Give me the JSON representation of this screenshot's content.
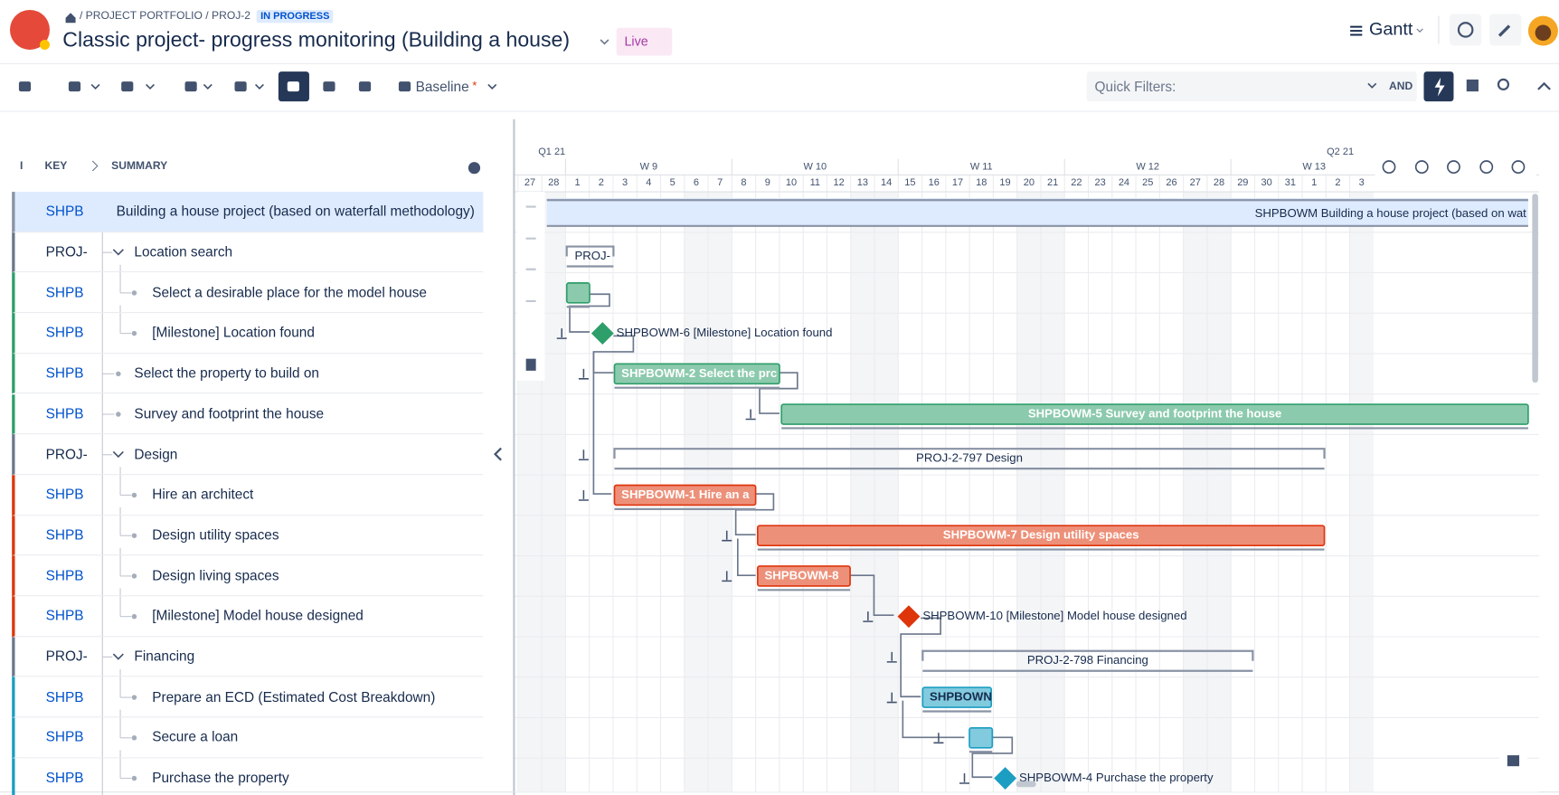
{
  "header": {
    "breadcrumb": "/ PROJECT PORTFOLIO / PROJ-2",
    "status": "IN PROGRESS",
    "title": "Classic project- progress monitoring (Building a house)",
    "live": "Live",
    "view": "Gantt"
  },
  "toolbar": {
    "baseline": "Baseline",
    "baseline_marker": "*",
    "quick_filters": "Quick Filters:",
    "and": "AND"
  },
  "columns": {
    "i": "I",
    "key": "KEY",
    "summary": "SUMMARY"
  },
  "rows": [
    {
      "key": "SHPB",
      "summary": "Building a house project (based on waterfall methodology)",
      "level": 0,
      "expandable": true,
      "color": "#8993a4"
    },
    {
      "key": "PROJ-",
      "summary": "Location search",
      "level": 1,
      "expandable": true,
      "color": "#6b778c"
    },
    {
      "key": "SHPB",
      "summary": "Select a desirable place for the model house",
      "level": 2,
      "expandable": false,
      "color": "#2e9e6a"
    },
    {
      "key": "SHPB",
      "summary": "[Milestone] Location found",
      "level": 2,
      "expandable": false,
      "color": "#2e9e6a"
    },
    {
      "key": "SHPB",
      "summary": "Select the property to build on",
      "level": 1,
      "expandable": false,
      "color": "#2e9e6a"
    },
    {
      "key": "SHPB",
      "summary": "Survey and footprint the house",
      "level": 1,
      "expandable": false,
      "color": "#2e9e6a"
    },
    {
      "key": "PROJ-",
      "summary": "Design",
      "level": 1,
      "expandable": true,
      "color": "#6b778c"
    },
    {
      "key": "SHPB",
      "summary": "Hire an architect",
      "level": 2,
      "expandable": false,
      "color": "#de350b"
    },
    {
      "key": "SHPB",
      "summary": "Design utility spaces",
      "level": 2,
      "expandable": false,
      "color": "#de350b"
    },
    {
      "key": "SHPB",
      "summary": "Design living spaces",
      "level": 2,
      "expandable": false,
      "color": "#de350b"
    },
    {
      "key": "SHPB",
      "summary": "[Milestone] Model house designed",
      "level": 2,
      "expandable": false,
      "color": "#de350b"
    },
    {
      "key": "PROJ-",
      "summary": "Financing",
      "level": 1,
      "expandable": true,
      "color": "#6b778c"
    },
    {
      "key": "SHPB",
      "summary": "Prepare an ECD (Estimated Cost Breakdown)",
      "level": 2,
      "expandable": false,
      "color": "#1b9ec2"
    },
    {
      "key": "SHPB",
      "summary": "Secure a loan",
      "level": 2,
      "expandable": false,
      "color": "#1b9ec2"
    },
    {
      "key": "SHPB",
      "summary": "Purchase the property",
      "level": 2,
      "expandable": false,
      "color": "#1b9ec2"
    }
  ],
  "timeline": {
    "quarters": [
      "Q1 21",
      "Q2 21"
    ],
    "weeks": [
      "W 9",
      "W 10",
      "W 11",
      "W 12",
      "W 13"
    ],
    "days": [
      27,
      28,
      1,
      2,
      3,
      4,
      5,
      6,
      7,
      8,
      9,
      10,
      11,
      12,
      13,
      14,
      15,
      16,
      17,
      18,
      19,
      20,
      21,
      22,
      23,
      24,
      25,
      26,
      27,
      28,
      29,
      30,
      31,
      1,
      2,
      3
    ]
  },
  "bars": [
    "SHPBOWM  Building a house project (based on wat",
    "PROJ-",
    null,
    "SHPBOWM-6  [Milestone] Location found",
    "SHPBOWM-2  Select the prc",
    "SHPBOWM-5  Survey and footprint the house",
    "PROJ-2-797  Design",
    "SHPBOWM-1  Hire an a",
    "SHPBOWM-7  Design utility spaces",
    "SHPBOWM-8",
    "SHPBOWM-10  [Milestone] Model house designed",
    "PROJ-2-798  Financing",
    "SHPBOWN",
    null,
    "SHPBOWM-4  Purchase the property"
  ]
}
